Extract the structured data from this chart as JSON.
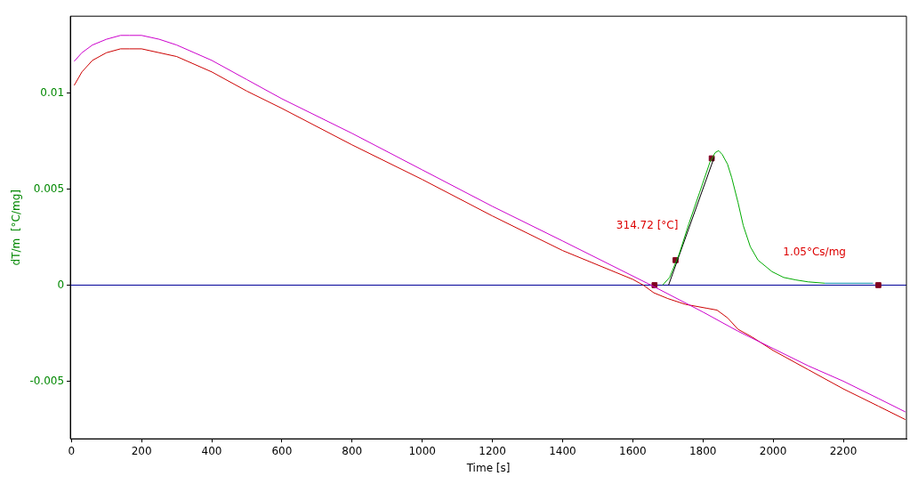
{
  "chart_data": {
    "type": "line",
    "xlabel": "Time [s]",
    "ylabel": "dT/m  [°C/mg]",
    "xlim": [
      -3,
      2380
    ],
    "xticks": [
      0,
      200,
      400,
      600,
      800,
      1000,
      1200,
      1400,
      1600,
      1800,
      2000,
      2200
    ],
    "ylim": [
      -0.008,
      0.014
    ],
    "yticks": [
      -0.005,
      0,
      0.005,
      0.01
    ],
    "grid": false,
    "legend": false,
    "marker": "none",
    "line_style": "solid",
    "series": [
      {
        "color": "#cc00cc",
        "x": [
          8,
          30,
          60,
          100,
          140,
          165,
          200,
          250,
          300,
          400,
          500,
          600,
          800,
          1000,
          1200,
          1400,
          1652,
          1800,
          1900,
          2000,
          2100,
          2200,
          2300,
          2377
        ],
        "values": [
          0.01165,
          0.0121,
          0.0125,
          0.0128,
          0.013,
          0.013,
          0.013,
          0.0128,
          0.0125,
          0.0117,
          0.0107,
          0.0097,
          0.0079,
          0.006,
          0.0041,
          0.0023,
          0,
          -0.0014,
          -0.0024,
          -0.0033,
          -0.0042,
          -0.005,
          -0.0059,
          -0.0066
        ]
      },
      {
        "color": "#cc0000",
        "x": [
          8,
          30,
          60,
          100,
          140,
          165,
          200,
          250,
          300,
          400,
          500,
          600,
          800,
          1000,
          1200,
          1400,
          1600,
          1630,
          1660,
          1700,
          1750,
          1810,
          1840,
          1870,
          1900,
          1940,
          2000,
          2100,
          2200,
          2300,
          2377
        ],
        "values": [
          0.0104,
          0.0111,
          0.0117,
          0.0121,
          0.0123,
          0.0123,
          0.0123,
          0.0121,
          0.0119,
          0.0111,
          0.0101,
          0.0092,
          0.0073,
          0.0055,
          0.0036,
          0.0018,
          0.0003,
          0,
          -0.0004,
          -0.0007,
          -0.001,
          -0.0012,
          -0.0013,
          -0.0017,
          -0.0023,
          -0.0027,
          -0.0034,
          -0.0044,
          -0.0054,
          -0.0063,
          -0.007
        ]
      },
      {
        "color": "#00aa00",
        "x": [
          1685,
          1705,
          1732,
          1760,
          1790,
          1820,
          1835,
          1845,
          1855,
          1870,
          1882,
          1900,
          1915,
          1935,
          1957,
          1997,
          2030,
          2065,
          2100,
          2147
        ],
        "values": [
          0,
          0.0004,
          0.0016,
          0.0032,
          0.0048,
          0.0064,
          0.0069,
          0.007,
          0.0068,
          0.0063,
          0.0056,
          0.0043,
          0.0031,
          0.002,
          0.0013,
          0.0007,
          0.0004,
          0.00027,
          0.00017,
          0.0001
        ]
      },
      {
        "color": "#0088aa",
        "x": [
          2147,
          2200,
          2285
        ],
        "values": [
          0.0001,
          0.0001,
          0.0001
        ]
      },
      {
        "color": "#000000",
        "x": [
          1702,
          1832
        ],
        "values": [
          0,
          0.00665
        ]
      },
      {
        "type": "scatter",
        "marker": "square",
        "color": "#800020",
        "x": [
          1662,
          1722,
          1825,
          2300
        ],
        "values": [
          0,
          0.0013,
          0.0066,
          0
        ]
      }
    ],
    "ref_lines": [
      {
        "axis": "y",
        "value": 0,
        "color": "#000099"
      }
    ],
    "annotations": [
      "314.72 [°C]",
      "1.05°Cs/mg"
    ]
  }
}
